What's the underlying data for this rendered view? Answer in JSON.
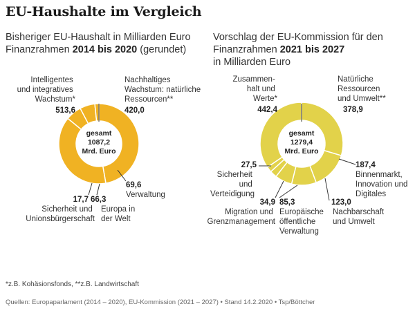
{
  "title": "EU-Haushalte im Vergleich",
  "left": {
    "subtitle_plain": "Bisheriger EU-Haushalt in Milliarden Euro",
    "subtitle_line2_a": "Finanzrahmen ",
    "subtitle_line2_bold": "2014 bis 2020",
    "subtitle_line2_b": " (gerundet)",
    "center_line1": "gesamt",
    "center_line2": "1087,2",
    "center_line3": "Mrd. Euro"
  },
  "right": {
    "subtitle_plain": "Vorschlag der EU-Kommission für den",
    "subtitle_line2_a": "Finanzrahmen ",
    "subtitle_line2_bold": "2021 bis 2027",
    "subtitle_line3": "in Milliarden Euro",
    "center_line1": "gesamt",
    "center_line2": "1279,4",
    "center_line3": "Mrd. Euro"
  },
  "colors": {
    "left_ring": "#f0b223",
    "right_ring": "#e2d24a",
    "separator": "#ffffff",
    "leader": "#333333"
  },
  "chart_data": [
    {
      "type": "pie",
      "title": "Bisheriger EU-Haushalt in Milliarden Euro – Finanzrahmen 2014 bis 2020 (gerundet)",
      "total_label": "1087,2",
      "slices": [
        {
          "label": "Intelligentes und integratives Wachstum*",
          "value": 513.6,
          "value_label": "513,6"
        },
        {
          "label": "Nachhaltiges Wachstum: natürliche Ressourcen**",
          "value": 420.0,
          "value_label": "420,0"
        },
        {
          "label": "Verwaltung",
          "value": 69.6,
          "value_label": "69,6"
        },
        {
          "label": "Europa in der Welt",
          "value": 66.3,
          "value_label": "66,3"
        },
        {
          "label": "Sicherheit und Unionsbürgerschaft",
          "value": 17.7,
          "value_label": "17,7"
        }
      ]
    },
    {
      "type": "pie",
      "title": "Vorschlag der EU-Kommission für den Finanzrahmen 2021 bis 2027 in Milliarden Euro",
      "total_label": "1279,4",
      "slices": [
        {
          "label": "Natürliche Ressourcen und Umwelt**",
          "value": 378.9,
          "value_label": "378,9"
        },
        {
          "label": "Binnenmarkt, Innovation und Digitales",
          "value": 187.4,
          "value_label": "187,4"
        },
        {
          "label": "Nachbarschaft und Umwelt",
          "value": 123.0,
          "value_label": "123,0"
        },
        {
          "label": "Europäische öffentliche Verwaltung",
          "value": 85.3,
          "value_label": "85,3"
        },
        {
          "label": "Migration und Grenzmanagement",
          "value": 34.9,
          "value_label": "34,9"
        },
        {
          "label": "Sicherheit und Verteidigung",
          "value": 27.5,
          "value_label": "27,5"
        },
        {
          "label": "Zusammenhalt und Werte*",
          "value": 442.4,
          "value_label": "442,4"
        }
      ]
    }
  ],
  "footnote": "*z.B. Kohäsionsfonds, **z.B. Landwirtschaft",
  "source": "Quellen: Europaparlament (2014 – 2020), EU-Kommission (2021 – 2027) • Stand 14.2.2020 • Tsp/Böttcher"
}
